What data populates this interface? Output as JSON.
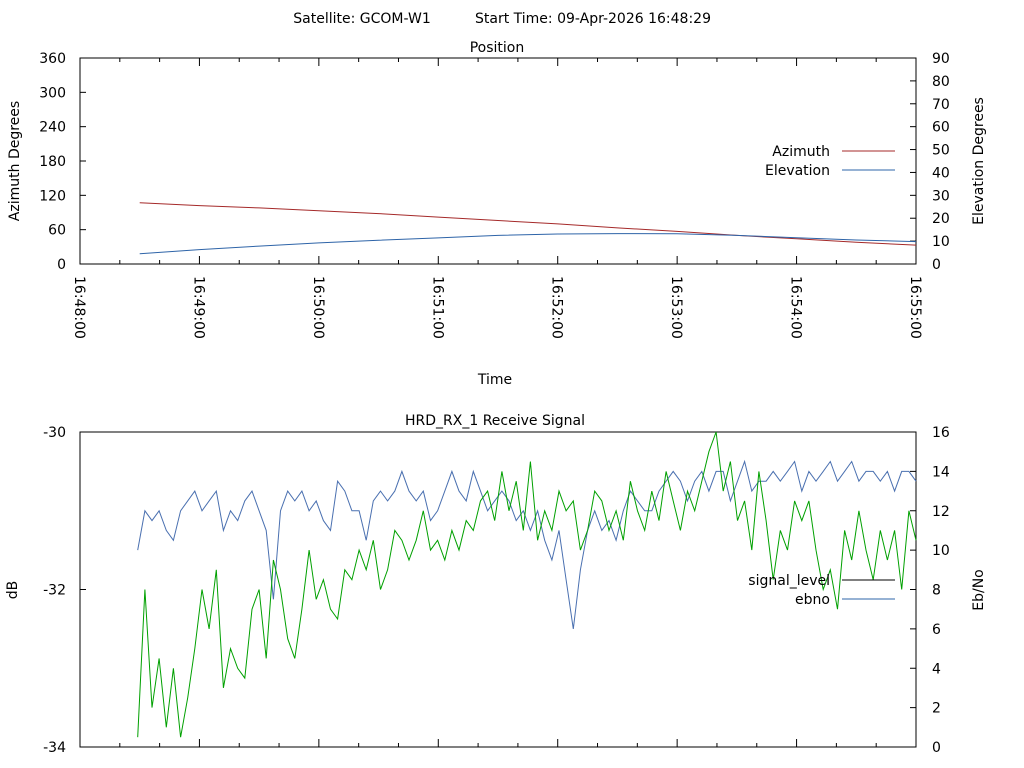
{
  "header": {
    "satellite": "Satellite: GCOM-W1",
    "start_time": "Start Time: 09-Apr-2026 16:48:29"
  },
  "colors": {
    "azimuth": "#a52a2a",
    "elevation": "#2e64a8",
    "signal_level": "#4a70b0",
    "ebno": "#00a000",
    "signal_level_legend": "#000000",
    "ebno_legend": "#2e64a8"
  },
  "chart_data": [
    {
      "type": "line",
      "title": "Position",
      "xlabel": "Time",
      "ylabel": "Azimuth Degrees",
      "y2label": "Elevation Degrees",
      "x_ticks": [
        "16:48:00",
        "16:49:00",
        "16:50:00",
        "16:51:00",
        "16:52:00",
        "16:53:00",
        "16:54:00",
        "16:55:00"
      ],
      "x_minor_ticks_per_major": 2,
      "xlim": [
        "16:48:00",
        "16:55:00"
      ],
      "ylim": [
        0,
        360
      ],
      "y_ticks": [
        "0",
        "60",
        "120",
        "180",
        "240",
        "300",
        "360"
      ],
      "y2lim": [
        0,
        90
      ],
      "y2_ticks": [
        "0",
        "10",
        "20",
        "30",
        "40",
        "50",
        "60",
        "70",
        "80",
        "90"
      ],
      "legend_position": "right",
      "series": [
        {
          "name": "Azimuth",
          "axis": "left",
          "x": [
            "16:48:30",
            "16:49:00",
            "16:49:30",
            "16:50:00",
            "16:50:30",
            "16:51:00",
            "16:51:30",
            "16:52:00",
            "16:52:30",
            "16:53:00",
            "16:53:30",
            "16:54:00",
            "16:54:30",
            "16:55:00"
          ],
          "values": [
            107,
            102,
            98,
            93,
            88,
            82,
            76,
            70,
            63,
            57,
            50,
            44,
            38,
            33
          ]
        },
        {
          "name": "Elevation",
          "axis": "right",
          "x": [
            "16:48:30",
            "16:49:00",
            "16:49:30",
            "16:50:00",
            "16:50:30",
            "16:51:00",
            "16:51:30",
            "16:52:00",
            "16:52:30",
            "16:53:00",
            "16:53:30",
            "16:54:00",
            "16:54:30",
            "16:55:00"
          ],
          "values": [
            4.5,
            6.3,
            7.8,
            9.2,
            10.4,
            11.4,
            12.5,
            13.1,
            13.3,
            13.2,
            12.5,
            11.5,
            10.5,
            9.8
          ]
        }
      ]
    },
    {
      "type": "line",
      "title": "HRD_RX_1 Receive Signal",
      "ylabel": "dB",
      "y2label": "Eb/No",
      "xlim": [
        "16:48:00",
        "16:55:00"
      ],
      "x_minor_ticks_per_major": 2,
      "ylim": [
        -34,
        -30
      ],
      "y_ticks": [
        "-34",
        "-32",
        "-30"
      ],
      "y2lim": [
        0,
        16
      ],
      "y2_ticks": [
        "0",
        "2",
        "4",
        "6",
        "8",
        "10",
        "12",
        "14",
        "16"
      ],
      "legend_position": "right",
      "series": [
        {
          "name": "signal_level",
          "axis": "right",
          "x_start": "16:48:29",
          "x_end": "16:55:00",
          "values": [
            10,
            12,
            11.5,
            12,
            11,
            10.5,
            12,
            12.5,
            13,
            12,
            12.5,
            13,
            11,
            12,
            11.5,
            12.5,
            13,
            12,
            11,
            7.5,
            12,
            13,
            12.5,
            13,
            12,
            12.5,
            11.5,
            11,
            13.5,
            13,
            12,
            12,
            10.5,
            12.5,
            13,
            12.5,
            13,
            14,
            13,
            12.5,
            13,
            11.5,
            12,
            13,
            14,
            13,
            12.5,
            14,
            13,
            12,
            12.5,
            13,
            12.5,
            11.5,
            12,
            11,
            12,
            10.5,
            9.5,
            11,
            8.5,
            6,
            9,
            11,
            12,
            11,
            11.5,
            10.5,
            12,
            13,
            12.5,
            12,
            12,
            13,
            13.5,
            14,
            13.5,
            12.5,
            13.5,
            14,
            13,
            14,
            14,
            12.5,
            13.5,
            14.5,
            13,
            13.5,
            13.5,
            14,
            13.5,
            14,
            14.5,
            13,
            14,
            13.5,
            14,
            14.5,
            13.5,
            14,
            14.5,
            13.5,
            14,
            14,
            13.5,
            14,
            13,
            14,
            14,
            13.5
          ]
        },
        {
          "name": "ebno",
          "axis": "right",
          "x_start": "16:48:29",
          "x_end": "16:55:00",
          "values": [
            0.5,
            8,
            2,
            4.5,
            1,
            4,
            0.5,
            2.5,
            5,
            8,
            6,
            9,
            3,
            5,
            4,
            3.5,
            7,
            8,
            4.5,
            9.5,
            8,
            5.5,
            4.5,
            7,
            10,
            7.5,
            8.5,
            7,
            6.5,
            9,
            8.5,
            10,
            9,
            10.5,
            8,
            9,
            11,
            10.5,
            9.5,
            10.5,
            12,
            10,
            10.5,
            9.5,
            11,
            10,
            11.5,
            11,
            12.5,
            13,
            11.5,
            14,
            12,
            13.5,
            11,
            14.5,
            10.5,
            12,
            11,
            13,
            12,
            12.5,
            10,
            11,
            13,
            12.5,
            11,
            12,
            10.5,
            13.5,
            12,
            11,
            13,
            11.5,
            14,
            12.5,
            11,
            13,
            12,
            13.5,
            15,
            16,
            13,
            14.5,
            11.5,
            12.5,
            10,
            14,
            11.5,
            8.5,
            11,
            10,
            12.5,
            11.5,
            12.5,
            10,
            8,
            9,
            7,
            11,
            9.5,
            12,
            10,
            8.5,
            11,
            9.5,
            11,
            8,
            12,
            10.5
          ]
        }
      ]
    }
  ]
}
